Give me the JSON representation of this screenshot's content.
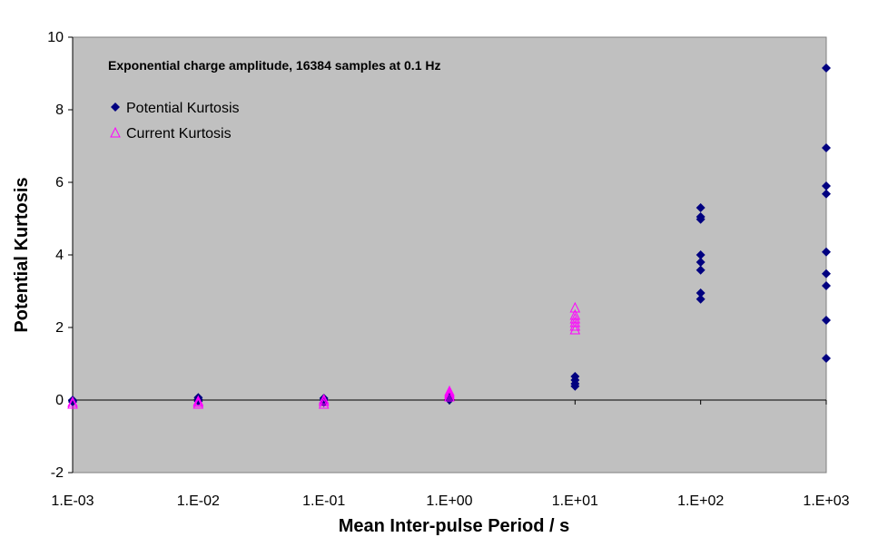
{
  "chart_data": {
    "type": "scatter",
    "annotation": "Exponential charge amplitude, 16384 samples at 0.1 Hz",
    "xlabel": "Mean Inter-pulse Period / s",
    "ylabel": "Potential Kurtosis",
    "x_scale": "log",
    "xlim": [
      0.001,
      1000
    ],
    "ylim": [
      -2,
      10
    ],
    "x_ticks": [
      0.001,
      0.01,
      0.1,
      1,
      10,
      100,
      1000
    ],
    "x_tick_labels": [
      "1.E-03",
      "1.E-02",
      "1.E-01",
      "1.E+00",
      "1.E+01",
      "1.E+02",
      "1.E+03"
    ],
    "y_ticks": [
      -2,
      0,
      2,
      4,
      6,
      8,
      10
    ],
    "y_tick_labels": [
      "-2",
      "0",
      "2",
      "4",
      "6",
      "8",
      "10"
    ],
    "grid": false,
    "plot_background": "#C0C0C0",
    "legend": {
      "position": "top-left",
      "entries": [
        "Potential Kurtosis",
        "Current Kurtosis"
      ]
    },
    "series": [
      {
        "name": "Potential Kurtosis",
        "marker": "diamond",
        "color": "#000080",
        "points": [
          [
            0.001,
            -0.05
          ],
          [
            0.001,
            0.0
          ],
          [
            0.001,
            -0.02
          ],
          [
            0.01,
            0.07
          ],
          [
            0.01,
            0.02
          ],
          [
            0.01,
            -0.03
          ],
          [
            0.1,
            0.05
          ],
          [
            0.1,
            0.0
          ],
          [
            0.1,
            -0.07
          ],
          [
            1,
            0.0
          ],
          [
            1,
            0.05
          ],
          [
            1,
            0.1
          ],
          [
            10,
            0.65
          ],
          [
            10,
            0.55
          ],
          [
            10,
            0.45
          ],
          [
            10,
            0.38
          ],
          [
            100,
            5.3
          ],
          [
            100,
            5.05
          ],
          [
            100,
            4.98
          ],
          [
            100,
            4.0
          ],
          [
            100,
            3.8
          ],
          [
            100,
            3.58
          ],
          [
            100,
            2.95
          ],
          [
            100,
            2.78
          ],
          [
            1000,
            9.15
          ],
          [
            1000,
            6.95
          ],
          [
            1000,
            5.9
          ],
          [
            1000,
            5.68
          ],
          [
            1000,
            4.08
          ],
          [
            1000,
            3.48
          ],
          [
            1000,
            3.15
          ],
          [
            1000,
            2.2
          ],
          [
            1000,
            1.15
          ]
        ]
      },
      {
        "name": "Current Kurtosis",
        "marker": "triangle-open",
        "color": "#FF00FF",
        "points": [
          [
            0.001,
            -0.1
          ],
          [
            0.001,
            -0.05
          ],
          [
            0.01,
            -0.1
          ],
          [
            0.01,
            -0.05
          ],
          [
            0.01,
            -0.02
          ],
          [
            0.1,
            -0.1
          ],
          [
            0.1,
            -0.03
          ],
          [
            0.1,
            0.02
          ],
          [
            1,
            0.1
          ],
          [
            1,
            0.15
          ],
          [
            1,
            0.2
          ],
          [
            1,
            0.25
          ],
          [
            10,
            2.55
          ],
          [
            10,
            2.35
          ],
          [
            10,
            2.25
          ],
          [
            10,
            2.15
          ],
          [
            10,
            2.05
          ],
          [
            10,
            1.95
          ]
        ]
      }
    ]
  }
}
